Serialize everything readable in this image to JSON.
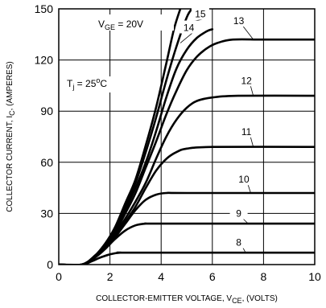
{
  "chart_data": {
    "type": "line",
    "xlabel_main": "COLLECTOR-EMITTER VOLTAGE, V",
    "xlabel_sub": "CE",
    "xlabel_tail": ", (VOLTS)",
    "ylabel_main": "COLLECTOR CURRENT, I",
    "ylabel_sub": "C",
    "ylabel_tail": ", (AMPERES)",
    "xlim": [
      0,
      10
    ],
    "ylim": [
      0,
      150
    ],
    "x_ticks": [
      "0",
      "2",
      "4",
      "6",
      "8",
      "10"
    ],
    "y_ticks": [
      "0",
      "30",
      "60",
      "90",
      "120",
      "150"
    ],
    "grid": true,
    "annotations": {
      "vge_main": "V",
      "vge_sub": "GE",
      "vge_tail": " = 20V",
      "tj_main": "T",
      "tj_sub": "j",
      "tj_value": " = 25",
      "tj_sup": "o",
      "tj_unit": "C"
    },
    "series": [
      {
        "name": "20V",
        "points": [
          [
            0,
            0
          ],
          [
            0.9,
            0
          ],
          [
            1.4,
            5
          ],
          [
            1.8,
            12
          ],
          [
            2.2,
            22
          ],
          [
            2.6,
            36
          ],
          [
            3,
            50
          ],
          [
            3.4,
            70
          ],
          [
            3.8,
            92
          ],
          [
            4.2,
            118
          ],
          [
            4.5,
            138
          ],
          [
            4.75,
            150
          ]
        ]
      },
      {
        "name": "15",
        "points": [
          [
            0,
            0
          ],
          [
            0.9,
            0
          ],
          [
            1.4,
            5
          ],
          [
            1.8,
            12
          ],
          [
            2.2,
            21
          ],
          [
            2.6,
            34
          ],
          [
            3,
            48
          ],
          [
            3.4,
            66
          ],
          [
            3.8,
            86
          ],
          [
            4.2,
            108
          ],
          [
            4.6,
            128
          ],
          [
            5,
            145
          ],
          [
            5.2,
            150
          ]
        ]
      },
      {
        "name": "14",
        "points": [
          [
            0,
            0
          ],
          [
            0.9,
            0
          ],
          [
            1.4,
            5
          ],
          [
            1.8,
            11
          ],
          [
            2.2,
            20
          ],
          [
            2.6,
            32
          ],
          [
            3,
            45
          ],
          [
            3.4,
            60
          ],
          [
            3.8,
            78
          ],
          [
            4.2,
            98
          ],
          [
            4.6,
            115
          ],
          [
            5,
            126
          ],
          [
            5.4,
            133
          ],
          [
            5.8,
            137
          ],
          [
            6,
            138
          ]
        ]
      },
      {
        "name": "13",
        "points": [
          [
            0,
            0
          ],
          [
            0.9,
            0
          ],
          [
            1.4,
            5
          ],
          [
            1.8,
            11
          ],
          [
            2.2,
            19
          ],
          [
            2.6,
            30
          ],
          [
            3,
            42
          ],
          [
            3.4,
            57
          ],
          [
            3.8,
            72
          ],
          [
            4.2,
            88
          ],
          [
            4.6,
            102
          ],
          [
            5,
            114
          ],
          [
            5.4,
            122
          ],
          [
            5.8,
            127
          ],
          [
            6.2,
            130
          ],
          [
            6.8,
            132
          ],
          [
            8,
            132
          ],
          [
            10,
            132
          ]
        ]
      },
      {
        "name": "12",
        "points": [
          [
            0,
            0
          ],
          [
            0.9,
            0
          ],
          [
            1.4,
            4
          ],
          [
            1.8,
            10
          ],
          [
            2.2,
            18
          ],
          [
            2.6,
            27
          ],
          [
            3,
            37
          ],
          [
            3.4,
            48
          ],
          [
            3.8,
            62
          ],
          [
            4.2,
            75
          ],
          [
            4.6,
            85
          ],
          [
            5,
            92
          ],
          [
            5.4,
            96
          ],
          [
            6,
            98
          ],
          [
            7,
            99
          ],
          [
            10,
            99
          ]
        ]
      },
      {
        "name": "11",
        "points": [
          [
            0,
            0
          ],
          [
            0.9,
            0
          ],
          [
            1.4,
            4
          ],
          [
            1.8,
            10
          ],
          [
            2.2,
            17
          ],
          [
            2.6,
            25
          ],
          [
            3,
            34
          ],
          [
            3.4,
            45
          ],
          [
            3.8,
            55
          ],
          [
            4.2,
            62
          ],
          [
            4.6,
            66
          ],
          [
            5,
            68
          ],
          [
            6,
            69
          ],
          [
            10,
            69
          ]
        ]
      },
      {
        "name": "10",
        "points": [
          [
            0,
            0
          ],
          [
            0.9,
            0
          ],
          [
            1.4,
            4
          ],
          [
            1.8,
            9
          ],
          [
            2.2,
            16
          ],
          [
            2.6,
            24
          ],
          [
            3,
            32
          ],
          [
            3.4,
            38
          ],
          [
            3.8,
            41
          ],
          [
            4.2,
            42
          ],
          [
            5,
            42
          ],
          [
            10,
            42
          ]
        ]
      },
      {
        "name": "9",
        "points": [
          [
            0,
            0
          ],
          [
            0.9,
            0
          ],
          [
            1.4,
            4
          ],
          [
            1.8,
            9
          ],
          [
            2.2,
            15
          ],
          [
            2.6,
            20
          ],
          [
            3,
            23
          ],
          [
            3.4,
            24
          ],
          [
            4,
            24
          ],
          [
            10,
            24
          ]
        ]
      },
      {
        "name": "8",
        "points": [
          [
            0,
            0
          ],
          [
            0.9,
            0
          ],
          [
            1.3,
            2
          ],
          [
            1.6,
            4
          ],
          [
            2,
            6
          ],
          [
            2.4,
            7
          ],
          [
            3,
            7
          ],
          [
            10,
            7
          ]
        ]
      }
    ]
  }
}
